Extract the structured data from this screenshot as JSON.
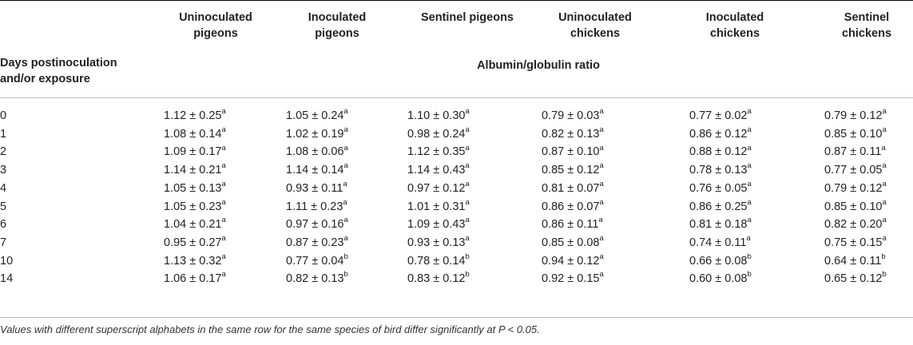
{
  "table": {
    "columns": [
      "Uninoculated pigeons",
      "Inoculated pigeons",
      "Sentinel pigeons",
      "Uninoculated chickens",
      "Inoculated chickens",
      "Sentinel chickens"
    ],
    "column_lines": [
      [
        "Uninoculated",
        "pigeons"
      ],
      [
        "Inoculated",
        "pigeons"
      ],
      [
        "Sentinel pigeons",
        ""
      ],
      [
        "Uninoculated",
        "chickens"
      ],
      [
        "Inoculated",
        "chickens"
      ],
      [
        "Sentinel",
        "chickens"
      ]
    ],
    "row_header_lines": [
      "Days postinoculation",
      "and/or exposure"
    ],
    "subheader": "Albumin/globulin ratio",
    "rows": [
      {
        "day": "0",
        "cells": [
          [
            "1.12 ± 0.25",
            "a"
          ],
          [
            "1.05 ± 0.24",
            "a"
          ],
          [
            "1.10 ± 0.30",
            "a"
          ],
          [
            "0.79 ± 0.03",
            "a"
          ],
          [
            "0.77 ± 0.02",
            "a"
          ],
          [
            "0.79 ± 0.12",
            "a"
          ]
        ]
      },
      {
        "day": "1",
        "cells": [
          [
            "1.08 ± 0.14",
            "a"
          ],
          [
            "1.02 ± 0.19",
            "a"
          ],
          [
            "0.98 ± 0.24",
            "a"
          ],
          [
            "0.82 ± 0.13",
            "a"
          ],
          [
            "0.86 ± 0.12",
            "a"
          ],
          [
            "0.85 ± 0.10",
            "a"
          ]
        ]
      },
      {
        "day": "2",
        "cells": [
          [
            "1.09 ± 0.17",
            "a"
          ],
          [
            "1.08 ± 0.06",
            "a"
          ],
          [
            "1.12 ± 0.35",
            "a"
          ],
          [
            "0.87 ± 0.10",
            "a"
          ],
          [
            "0.88 ± 0.12",
            "a"
          ],
          [
            "0.87 ± 0.11",
            "a"
          ]
        ]
      },
      {
        "day": "3",
        "cells": [
          [
            "1.14 ± 0.21",
            "a"
          ],
          [
            "1.14 ± 0.14",
            "a"
          ],
          [
            "1.14 ± 0.43",
            "a"
          ],
          [
            "0.85 ± 0.12",
            "a"
          ],
          [
            "0.78 ± 0.13",
            "a"
          ],
          [
            "0.77 ± 0.05",
            "a"
          ]
        ]
      },
      {
        "day": "4",
        "cells": [
          [
            "1.05 ± 0.13",
            "a"
          ],
          [
            "0.93 ± 0.11",
            "a"
          ],
          [
            "0.97 ± 0.12",
            "a"
          ],
          [
            "0.81 ± 0.07",
            "a"
          ],
          [
            "0.76 ± 0.05",
            "a"
          ],
          [
            "0.79 ± 0.12",
            "a"
          ]
        ]
      },
      {
        "day": "5",
        "cells": [
          [
            "1.05 ± 0.23",
            "a"
          ],
          [
            "1.11 ± 0.23",
            "a"
          ],
          [
            "1.01 ± 0.31",
            "a"
          ],
          [
            "0.86 ± 0.07",
            "a"
          ],
          [
            "0.86 ± 0.25",
            "a"
          ],
          [
            "0.85 ± 0.10",
            "a"
          ]
        ]
      },
      {
        "day": "6",
        "cells": [
          [
            "1.04 ± 0.21",
            "a"
          ],
          [
            "0.97 ± 0.16",
            "a"
          ],
          [
            "1.09 ± 0.43",
            "a"
          ],
          [
            "0.86 ± 0.11",
            "a"
          ],
          [
            "0.81 ± 0.18",
            "a"
          ],
          [
            "0.82 ± 0.20",
            "a"
          ]
        ]
      },
      {
        "day": "7",
        "cells": [
          [
            "0.95 ± 0.27",
            "a"
          ],
          [
            "0.87 ± 0.23",
            "a"
          ],
          [
            "0.93 ± 0.13",
            "a"
          ],
          [
            "0.85 ± 0.08",
            "a"
          ],
          [
            "0.74 ± 0.11",
            "a"
          ],
          [
            "0.75 ± 0.15",
            "a"
          ]
        ]
      },
      {
        "day": "10",
        "cells": [
          [
            "1.13 ± 0.32",
            "a"
          ],
          [
            "0.77 ± 0.04",
            "b"
          ],
          [
            "0.78 ± 0.14",
            "b"
          ],
          [
            "0.94 ± 0.12",
            "a"
          ],
          [
            "0.66 ± 0.08",
            "b"
          ],
          [
            "0.64 ± 0.11",
            "b"
          ]
        ]
      },
      {
        "day": "14",
        "cells": [
          [
            "1.06 ± 0.17",
            "a"
          ],
          [
            "0.82 ± 0.13",
            "b"
          ],
          [
            "0.83 ± 0.12",
            "b"
          ],
          [
            "0.92 ± 0.15",
            "a"
          ],
          [
            "0.60 ± 0.08",
            "b"
          ],
          [
            "0.65 ± 0.12",
            "b"
          ]
        ]
      }
    ],
    "footnote": "Values with different superscript alphabets in the same row for the same species of bird differ significantly at P < 0.05."
  }
}
